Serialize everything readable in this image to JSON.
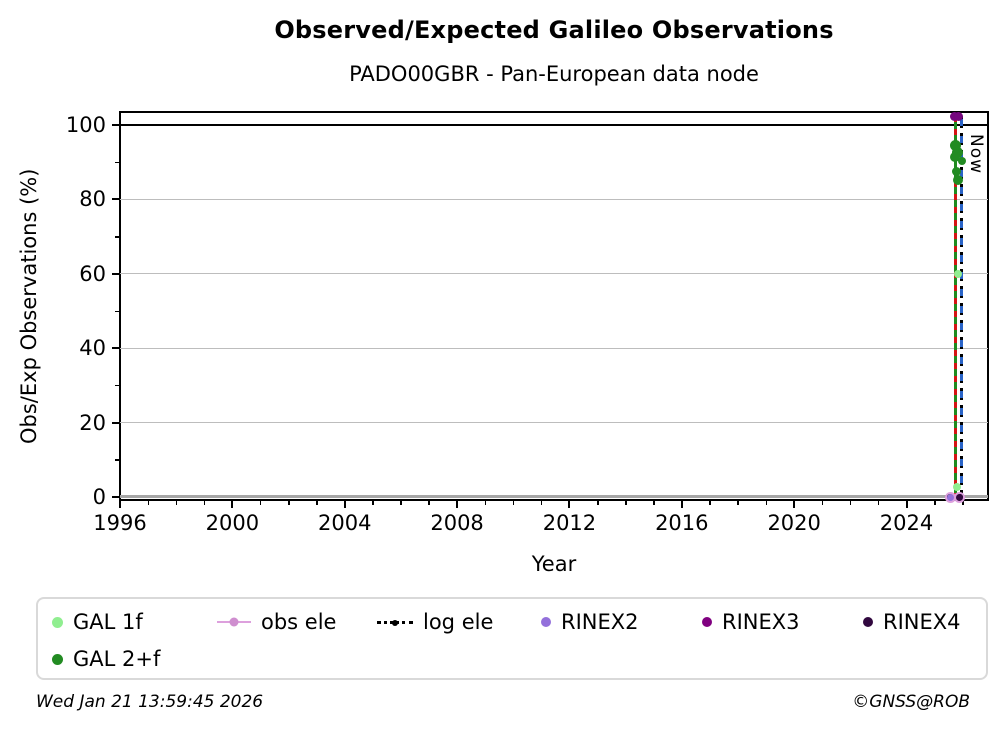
{
  "chart_data": {
    "type": "scatter",
    "title": "Observed/Expected Galileo Observations",
    "subtitle": "PADO00GBR - Pan-European data node",
    "xlabel": "Year",
    "ylabel": "Obs/Exp Observations (%)",
    "xlim": [
      1996,
      2026.9
    ],
    "ylim": [
      -0.8,
      103.5
    ],
    "x_ticks": [
      1996,
      2000,
      2004,
      2008,
      2012,
      2016,
      2020,
      2024
    ],
    "y_ticks": [
      0,
      20,
      40,
      60,
      80,
      100
    ],
    "x_minor_step": 1,
    "y_minor_step": 10,
    "grid": {
      "horizontal_major": true,
      "color": "#bdbdbd",
      "line_at_100_color": "#000000",
      "legend_position": "bottom"
    },
    "annotations": [
      {
        "type": "vline",
        "style": "dashed-red-green",
        "x": 2025.73,
        "y_top": 102.5,
        "y_bottom": 0,
        "label": ""
      },
      {
        "type": "vline",
        "style": "dashed-black-blue",
        "x": 2025.96,
        "y_top": 102.5,
        "y_bottom": 0,
        "label": "Now"
      }
    ],
    "series": [
      {
        "name": "GAL 1f",
        "color": "#90EE90",
        "marker": "circle",
        "points": [
          [
            2025.82,
            59.9,
            4
          ],
          [
            2025.8,
            2.7,
            4
          ]
        ]
      },
      {
        "name": "GAL 2+f",
        "color": "#228B22",
        "marker": "circle",
        "points": [
          [
            2025.76,
            94.4,
            5.5
          ],
          [
            2025.83,
            92.7,
            5.5
          ],
          [
            2025.73,
            91.4,
            5
          ],
          [
            2025.97,
            90.3,
            4
          ],
          [
            2025.79,
            87.4,
            4.5
          ],
          [
            2025.83,
            85.2,
            5
          ]
        ]
      },
      {
        "name": "obs ele",
        "color": "#DDA0DD",
        "marker": "circle",
        "points": [
          [
            2025.55,
            0,
            5.5
          ],
          [
            2025.9,
            0,
            5.5
          ]
        ]
      },
      {
        "name": "log ele",
        "color": "#000000",
        "marker": "circle",
        "points": [
          [
            2025.55,
            0,
            3
          ],
          [
            2025.9,
            0,
            3
          ]
        ]
      },
      {
        "name": "RINEX2",
        "color": "#9370DB",
        "marker": "circle",
        "points": [
          [
            2025.55,
            0,
            3.5
          ]
        ]
      },
      {
        "name": "RINEX3",
        "color": "#75077F",
        "marker": "circle",
        "points": [
          [
            2025.7,
            102.2,
            4.5
          ],
          [
            2025.84,
            102.2,
            4.5
          ]
        ]
      },
      {
        "name": "RINEX4",
        "color": "#31083F",
        "marker": "circle",
        "points": [
          [
            2025.9,
            0,
            3.5
          ]
        ]
      }
    ]
  },
  "legend": {
    "items": [
      {
        "label": "GAL 1f",
        "color": "#90EE90",
        "marker": "dot"
      },
      {
        "label": "GAL 2+f",
        "color": "#228B22",
        "marker": "dot"
      },
      {
        "label": "obs ele",
        "color": "#DDA0DD",
        "marker": "line-dot"
      },
      {
        "label": "log ele",
        "color": "#000000",
        "marker": "dotted-line-dot"
      },
      {
        "label": "RINEX2",
        "color": "#9370DB",
        "marker": "dot"
      },
      {
        "label": "RINEX3",
        "color": "#800080",
        "marker": "dot"
      },
      {
        "label": "RINEX4",
        "color": "#31083F",
        "marker": "dot"
      }
    ]
  },
  "footer": {
    "generated": "Wed Jan 21 13:59:45 2026",
    "credit": "©GNSS@ROB"
  }
}
